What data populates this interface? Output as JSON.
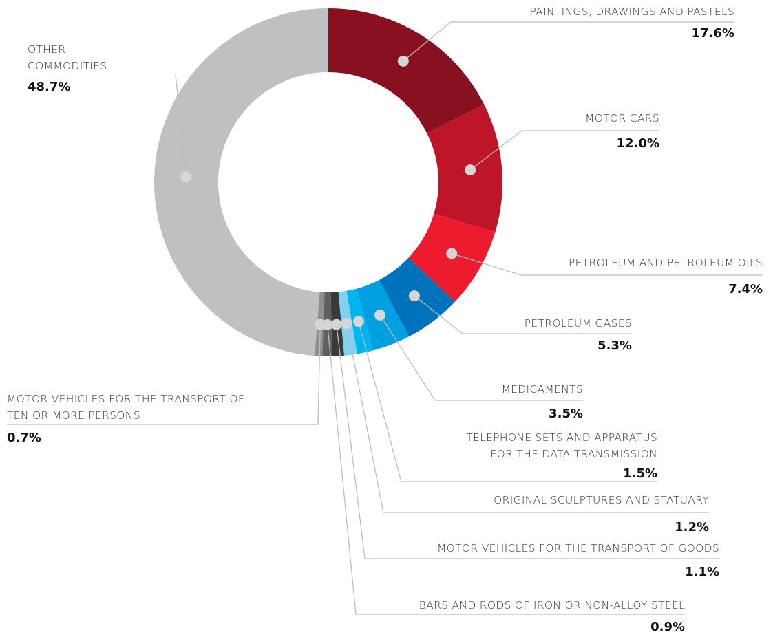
{
  "chart_data": {
    "type": "donut",
    "categories": [
      "PAINTINGS, DRAWINGS AND PASTELS",
      "MOTOR CARS",
      "PETROLEUM AND PETROLEUM OILS",
      "PETROLEUM GASES",
      "MEDICAMENTS",
      "TELEPHONE SETS AND APPARATUS\nFOR THE DATA TRANSMISSION",
      "ORIGINAL SCULPTURES AND STATUARY",
      "MOTOR VEHICLES FOR THE TRANSPORT OF GOODS",
      "BARS AND RODS OF IRON OR NON-ALLOY STEEL",
      "MOTOR VEHICLES FOR THE TRANSPORT OF\nTEN OR MORE PERSONS",
      "OTHER\nCOMMODITIES"
    ],
    "values": [
      17.6,
      12.0,
      7.4,
      5.3,
      3.5,
      1.5,
      1.2,
      1.1,
      0.9,
      0.7,
      48.7
    ],
    "value_labels": [
      "17.6%",
      "12.0%",
      "7.4%",
      "5.3%",
      "3.5%",
      "1.5%",
      "1.2%",
      "1.1%",
      "0.9%",
      "0.7%",
      "48.7%"
    ],
    "colors": [
      "#89111f",
      "#be1628",
      "#ec1c2e",
      "#0072bc",
      "#009fe0",
      "#00b4ee",
      "#80d2f4",
      "#3a3a3a",
      "#5f5f5f",
      "#8f8f8f",
      "#bfc0c1"
    ]
  }
}
